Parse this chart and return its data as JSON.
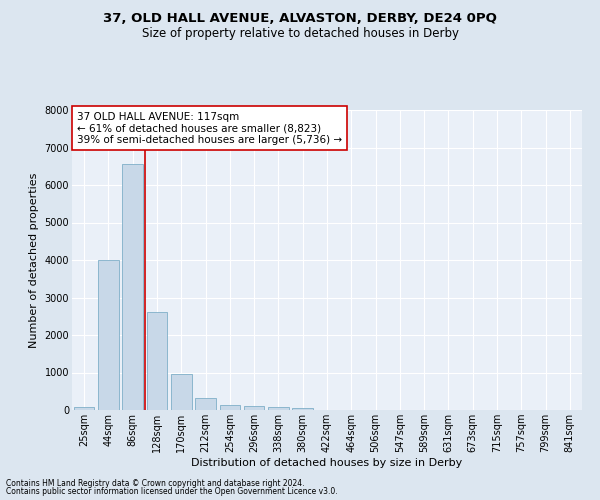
{
  "title1": "37, OLD HALL AVENUE, ALVASTON, DERBY, DE24 0PQ",
  "title2": "Size of property relative to detached houses in Derby",
  "xlabel": "Distribution of detached houses by size in Derby",
  "ylabel": "Number of detached properties",
  "footnote1": "Contains HM Land Registry data © Crown copyright and database right 2024.",
  "footnote2": "Contains public sector information licensed under the Open Government Licence v3.0.",
  "bar_labels": [
    "25sqm",
    "44sqm",
    "86sqm",
    "128sqm",
    "170sqm",
    "212sqm",
    "254sqm",
    "296sqm",
    "338sqm",
    "380sqm",
    "422sqm",
    "464sqm",
    "506sqm",
    "547sqm",
    "589sqm",
    "631sqm",
    "673sqm",
    "715sqm",
    "757sqm",
    "799sqm",
    "841sqm"
  ],
  "bar_values": [
    75,
    4000,
    6550,
    2620,
    950,
    310,
    130,
    110,
    90,
    60,
    0,
    0,
    0,
    0,
    0,
    0,
    0,
    0,
    0,
    0,
    0
  ],
  "bar_color": "#c8d8e8",
  "bar_edge_color": "#7fafc8",
  "vline_color": "#cc0000",
  "annotation_text": "37 OLD HALL AVENUE: 117sqm\n← 61% of detached houses are smaller (8,823)\n39% of semi-detached houses are larger (5,736) →",
  "annotation_fontsize": 7.5,
  "annotation_box_color": "#ffffff",
  "annotation_box_edge_color": "#cc0000",
  "ylim": [
    0,
    8000
  ],
  "yticks": [
    0,
    1000,
    2000,
    3000,
    4000,
    5000,
    6000,
    7000,
    8000
  ],
  "bg_color": "#dce6f0",
  "plot_bg_color": "#eaf0f8",
  "grid_color": "#ffffff",
  "title_fontsize": 9.5,
  "subtitle_fontsize": 8.5,
  "axis_label_fontsize": 8,
  "tick_fontsize": 7,
  "footnote_fontsize": 5.5
}
